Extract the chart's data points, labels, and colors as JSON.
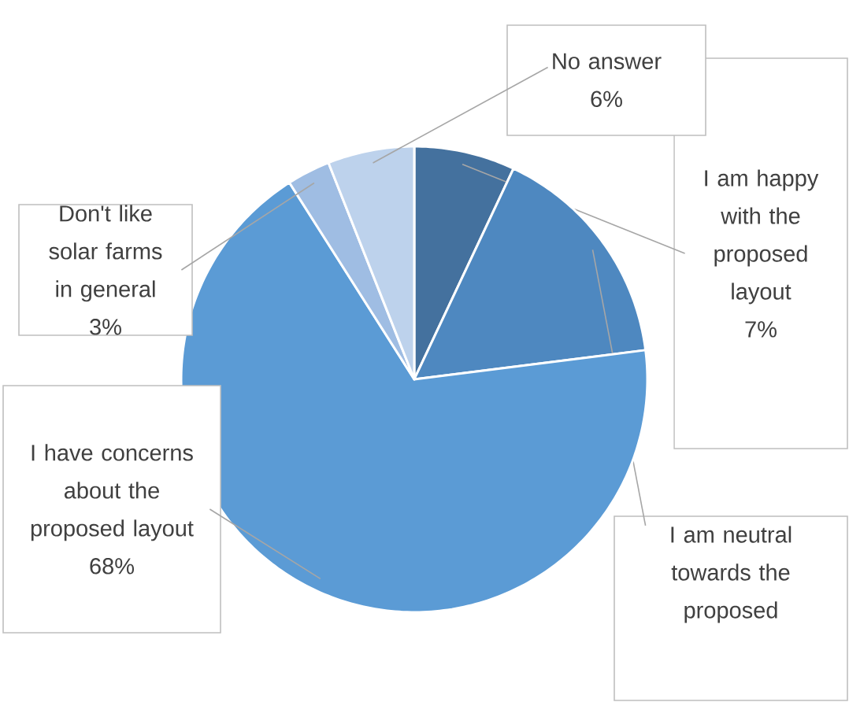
{
  "chart_data": {
    "type": "pie",
    "categories": [
      "I am happy with the proposed layout",
      "I am neutral towards the proposed",
      "I have concerns about the proposed layout",
      "Don't like solar farms in general",
      "No answer"
    ],
    "values": [
      7,
      16,
      68,
      3,
      6
    ],
    "colors": [
      "#44719e",
      "#4e88c0",
      "#5b9bd5",
      "#9fbde3",
      "#bdd2ec"
    ],
    "value_labels": [
      "7%",
      null,
      "68%",
      "3%",
      "6%"
    ]
  }
}
